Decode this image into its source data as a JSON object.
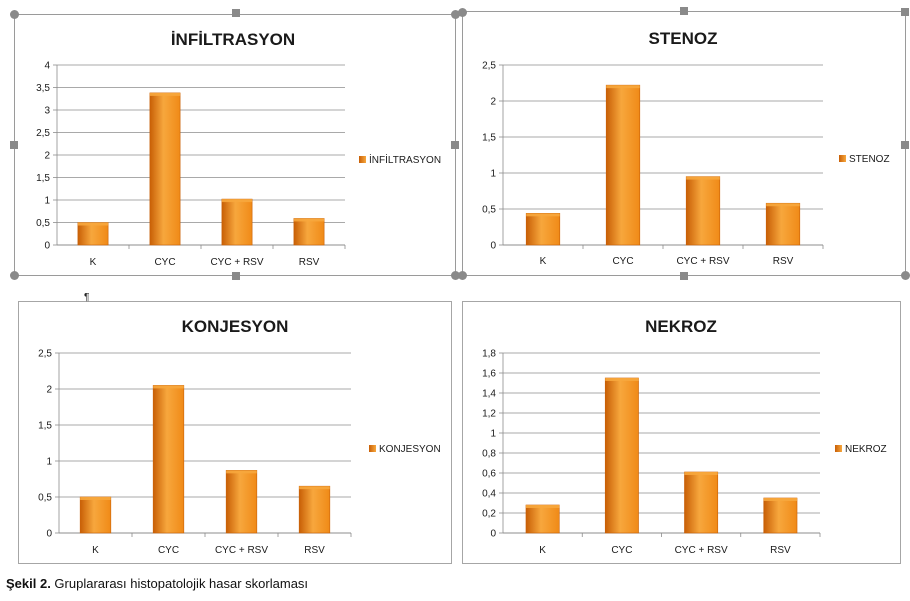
{
  "caption": {
    "bold": "Şekil 2.",
    "text": " Gruplararası histopatolojik hasar skorlaması"
  },
  "colors": {
    "bar_top": "#f7a73d",
    "bar_mid": "#f08a17",
    "bar_dark": "#c85f06",
    "grid": "#8c8c8c",
    "text": "#1a1a1a"
  },
  "chart_data": [
    {
      "type": "bar",
      "title": "İNFİLTRASYON",
      "categories": [
        "K",
        "CYC",
        "CYC + RSV",
        "RSV"
      ],
      "series": [
        {
          "name": "İNFİLTRASYON",
          "values": [
            0.5,
            3.38,
            1.02,
            0.59
          ]
        }
      ],
      "y_ticks": [
        "0",
        "0,5",
        "1",
        "1,5",
        "2",
        "2,5",
        "3",
        "3,5",
        "4"
      ],
      "ylim": [
        0,
        4
      ],
      "grid": true,
      "legend": "right"
    },
    {
      "type": "bar",
      "title": "STENOZ",
      "categories": [
        "K",
        "CYC",
        "CYC + RSV",
        "RSV"
      ],
      "series": [
        {
          "name": "STENOZ",
          "values": [
            0.44,
            2.22,
            0.95,
            0.58
          ]
        }
      ],
      "y_ticks": [
        "0",
        "0,5",
        "1",
        "1,5",
        "2",
        "2,5"
      ],
      "ylim": [
        0,
        2.5
      ],
      "grid": true,
      "legend": "right"
    },
    {
      "type": "bar",
      "title": "KONJESYON",
      "categories": [
        "K",
        "CYC",
        "CYC + RSV",
        "RSV"
      ],
      "series": [
        {
          "name": "KONJESYON",
          "values": [
            0.5,
            2.05,
            0.87,
            0.65
          ]
        }
      ],
      "y_ticks": [
        "0",
        "0,5",
        "1",
        "1,5",
        "2",
        "2,5"
      ],
      "ylim": [
        0,
        2.5
      ],
      "grid": true,
      "legend": "right"
    },
    {
      "type": "bar",
      "title": "NEKROZ",
      "categories": [
        "K",
        "CYC",
        "CYC + RSV",
        "RSV"
      ],
      "series": [
        {
          "name": "NEKROZ",
          "values": [
            0.28,
            1.55,
            0.61,
            0.35
          ]
        }
      ],
      "y_ticks": [
        "0",
        "0,2",
        "0,4",
        "0,6",
        "0,8",
        "1",
        "1,2",
        "1,4",
        "1,6",
        "1,8"
      ],
      "ylim": [
        0,
        1.8
      ],
      "grid": true,
      "legend": "right"
    }
  ]
}
